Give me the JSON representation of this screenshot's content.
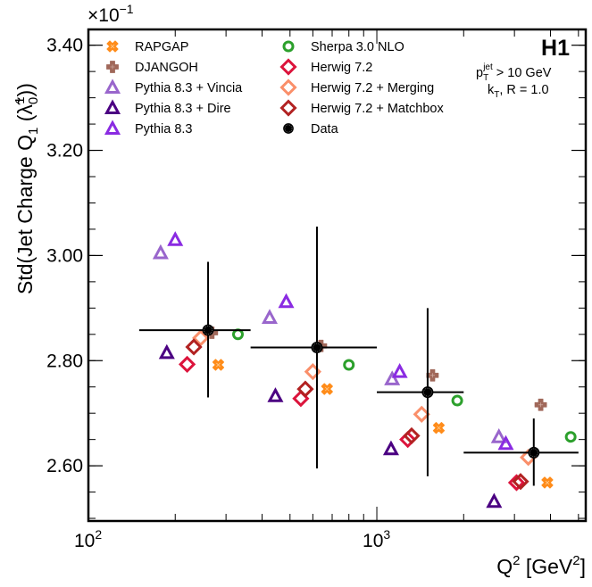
{
  "chart_data": {
    "type": "scatter",
    "title": "",
    "xlabel": "Q^2 [GeV^2]",
    "xlabel_parts": {
      "base": "Q",
      "sup": "2",
      "unit_open": " [GeV",
      "unit_sup": "2",
      "unit_close": "]"
    },
    "ylabel": "Std(Jet Charge Q1 (λ̃_0^1))",
    "ylabel_parts": {
      "main": "Std(Jet Charge Q",
      "sub": "1",
      "mid": " (",
      "lambda": "λ̃",
      "lsub": "0",
      "lsup": "1",
      "close": "))"
    },
    "y_multiplier": "×10",
    "y_multiplier_exp": "−1",
    "xscale": "log",
    "xlim": [
      100,
      5300
    ],
    "ylim": [
      2.495,
      3.43
    ],
    "x_ticks": [
      {
        "value": 100,
        "base": "10",
        "exp": "2"
      },
      {
        "value": 1000,
        "base": "10",
        "exp": "3"
      }
    ],
    "y_ticks": [
      {
        "value": 2.6,
        "label": "2.60"
      },
      {
        "value": 2.8,
        "label": "2.80"
      },
      {
        "value": 3.0,
        "label": "3.00"
      },
      {
        "value": 3.2,
        "label": "3.20"
      },
      {
        "value": 3.4,
        "label": "3.40"
      }
    ],
    "y_minor_step": 0.05,
    "grid": false,
    "legend_placement": "top",
    "annotation": {
      "experiment": "H1",
      "cut_line": {
        "p": "p",
        "sub": "T",
        "sup": "jet",
        "rest": " > 10 GeV"
      },
      "algo_line": {
        "k": "k",
        "sub": "T",
        "rest": ", R = 1.0"
      }
    },
    "series": [
      {
        "name": "RAPGAP",
        "marker": "cross-x",
        "color": "#ff8c1a",
        "x": [
          282,
          672,
          1640,
          3900
        ],
        "y": [
          2.792,
          2.746,
          2.672,
          2.568
        ]
      },
      {
        "name": "DJANGOH",
        "marker": "plus",
        "color": "#a0685a",
        "x": [
          268,
          640,
          1560,
          3700
        ],
        "y": [
          2.853,
          2.828,
          2.772,
          2.716
        ]
      },
      {
        "name": "Pythia 8.3 + Vincia",
        "marker": "triangle",
        "color": "#9966cc",
        "x": [
          178,
          425,
          1130,
          2650
        ],
        "y": [
          3.005,
          2.882,
          2.765,
          2.655
        ]
      },
      {
        "name": "Pythia 8.3 + Dire",
        "marker": "triangle",
        "color": "#4b0082",
        "x": [
          187,
          445,
          1120,
          2550
        ],
        "y": [
          2.815,
          2.733,
          2.632,
          2.532
        ]
      },
      {
        "name": "Pythia 8.3",
        "marker": "triangle",
        "color": "#8a2be2",
        "x": [
          200,
          485,
          1200,
          2800
        ],
        "y": [
          3.03,
          2.912,
          2.779,
          2.642
        ]
      },
      {
        "name": "Sherpa 3.0 NLO",
        "marker": "circle",
        "color": "#2ca02c",
        "x": [
          330,
          800,
          1900,
          4700
        ],
        "y": [
          2.85,
          2.792,
          2.724,
          2.655
        ]
      },
      {
        "name": "Herwig 7.2",
        "marker": "diamond",
        "color": "#dc143c",
        "x": [
          220,
          545,
          1280,
          3050
        ],
        "y": [
          2.793,
          2.728,
          2.65,
          2.568
        ]
      },
      {
        "name": "Herwig 7.2 + Merging",
        "marker": "diamond",
        "color": "#fa8f6a",
        "x": [
          245,
          600,
          1430,
          3350
        ],
        "y": [
          2.843,
          2.779,
          2.698,
          2.616
        ]
      },
      {
        "name": "Herwig 7.2 + Matchbox",
        "marker": "diamond",
        "color": "#b22222",
        "x": [
          232,
          565,
          1320,
          3150
        ],
        "y": [
          2.826,
          2.746,
          2.657,
          2.57
        ]
      },
      {
        "name": "Data",
        "marker": "data-circle",
        "color": "#000000",
        "x": [
          260,
          620,
          1500,
          3500
        ],
        "y": [
          2.858,
          2.825,
          2.74,
          2.625
        ],
        "x_low": [
          150,
          365,
          1000,
          2000
        ],
        "x_high": [
          365,
          1000,
          2000,
          5000
        ],
        "y_low": [
          2.73,
          2.595,
          2.58,
          2.562
        ],
        "y_high": [
          2.988,
          3.055,
          2.9,
          2.69
        ]
      }
    ]
  }
}
